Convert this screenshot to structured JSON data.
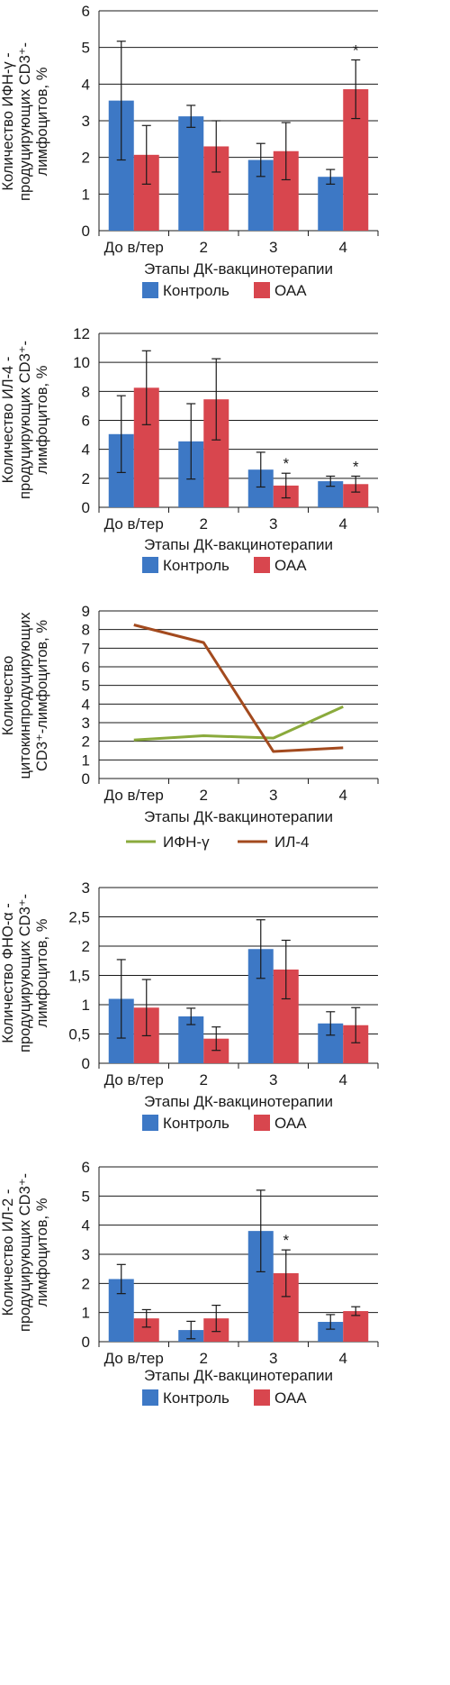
{
  "colors": {
    "control": "#3d78c5",
    "oaa": "#d8464e",
    "ifn": "#8aaa3c",
    "il4": "#a34a1e",
    "grid": "#1a1a1a",
    "error": "#1a1a1a"
  },
  "chart_data": [
    {
      "type": "bar",
      "ylabel_lines": [
        "Количество ИФН-γ -",
        "продуцирующих CD3⁺-",
        "лимфоцитов, %"
      ],
      "xlabel": "Этапы ДК-вакцинотерапии",
      "categories": [
        "До в/тер",
        "2",
        "3",
        "4"
      ],
      "ylim": [
        0,
        6
      ],
      "yticks": [
        "0",
        "1",
        "2",
        "3",
        "4",
        "5",
        "6"
      ],
      "grid": true,
      "legend_position": "bottom",
      "series": [
        {
          "name": "Контроль",
          "color_key": "control",
          "values": [
            3.55,
            3.12,
            1.93,
            1.47
          ],
          "errors": [
            1.62,
            0.3,
            0.45,
            0.2
          ]
        },
        {
          "name": "ОАА",
          "color_key": "oaa",
          "values": [
            2.07,
            2.3,
            2.17,
            3.86
          ],
          "errors": [
            0.8,
            0.7,
            0.78,
            0.8
          ]
        }
      ],
      "annotations": [
        {
          "series": 1,
          "category": 3,
          "text": "*"
        }
      ]
    },
    {
      "type": "bar",
      "ylabel_lines": [
        "Количество ИЛ-4 -",
        "продуцирующих CD3⁺-",
        "лимфоцитов, %"
      ],
      "xlabel": "Этапы ДК-вакцинотерапии",
      "categories": [
        "До в/тер",
        "2",
        "3",
        "4"
      ],
      "ylim": [
        0,
        12
      ],
      "yticks": [
        "0",
        "2",
        "4",
        "6",
        "8",
        "10",
        "12"
      ],
      "grid": true,
      "legend_position": "bottom",
      "series": [
        {
          "name": "Контроль",
          "color_key": "control",
          "values": [
            5.05,
            4.55,
            2.6,
            1.8
          ],
          "errors": [
            2.65,
            2.6,
            1.2,
            0.35
          ]
        },
        {
          "name": "ОАА",
          "color_key": "oaa",
          "values": [
            8.25,
            7.45,
            1.5,
            1.6
          ],
          "errors": [
            2.55,
            2.8,
            0.85,
            0.55
          ]
        }
      ],
      "annotations": [
        {
          "series": 1,
          "category": 2,
          "text": "*"
        },
        {
          "series": 1,
          "category": 3,
          "text": "*"
        }
      ]
    },
    {
      "type": "line",
      "ylabel_lines": [
        "Количество",
        "цитокинпродуцирующих",
        "CD3⁺-лимфоцитов, %"
      ],
      "xlabel": "Этапы ДК-вакцинотерапии",
      "categories": [
        "До в/тер",
        "2",
        "3",
        "4"
      ],
      "ylim": [
        0,
        9
      ],
      "yticks": [
        "0",
        "1",
        "2",
        "3",
        "4",
        "5",
        "6",
        "7",
        "8",
        "9"
      ],
      "grid": true,
      "legend_position": "bottom",
      "series": [
        {
          "name": "ИФН-γ",
          "color_key": "ifn",
          "values": [
            2.07,
            2.3,
            2.17,
            3.86
          ]
        },
        {
          "name": "ИЛ-4",
          "color_key": "il4",
          "values": [
            8.25,
            7.3,
            1.45,
            1.65
          ]
        }
      ]
    },
    {
      "type": "bar",
      "ylabel_lines": [
        "Количество ФНО-α -",
        "продуцирующих CD3⁺-",
        "лимфоцитов, %"
      ],
      "xlabel": "Этапы ДК-вакцинотерапии",
      "categories": [
        "До в/тер",
        "2",
        "3",
        "4"
      ],
      "ylim": [
        0,
        3
      ],
      "yticks": [
        "0",
        "0,5",
        "1",
        "1,5",
        "2",
        "2,5",
        "3"
      ],
      "grid": true,
      "legend_position": "bottom",
      "series": [
        {
          "name": "Контроль",
          "color_key": "control",
          "values": [
            1.1,
            0.8,
            1.95,
            0.68
          ],
          "errors": [
            0.67,
            0.14,
            0.5,
            0.2
          ]
        },
        {
          "name": "ОАА",
          "color_key": "oaa",
          "values": [
            0.95,
            0.42,
            1.6,
            0.65
          ],
          "errors": [
            0.48,
            0.2,
            0.5,
            0.3
          ]
        }
      ],
      "annotations": []
    },
    {
      "type": "bar",
      "ylabel_lines": [
        "Количество ИЛ-2 -",
        "продуцирующих CD3⁺-",
        "лимфоцитов, %"
      ],
      "xlabel": "Этапы ДК-вакцинотерапии",
      "categories": [
        "До в/тер",
        "2",
        "3",
        "4"
      ],
      "ylim": [
        0,
        6
      ],
      "yticks": [
        "0",
        "1",
        "2",
        "3",
        "4",
        "5",
        "6"
      ],
      "grid": true,
      "legend_position": "bottom",
      "series": [
        {
          "name": "Контроль",
          "color_key": "control",
          "values": [
            2.15,
            0.4,
            3.8,
            0.68
          ],
          "errors": [
            0.5,
            0.3,
            1.4,
            0.25
          ]
        },
        {
          "name": "ОАА",
          "color_key": "oaa",
          "values": [
            0.8,
            0.8,
            2.35,
            1.05
          ],
          "errors": [
            0.3,
            0.45,
            0.8,
            0.15
          ]
        }
      ],
      "annotations": [
        {
          "series": 1,
          "category": 2,
          "text": "*"
        }
      ]
    }
  ]
}
